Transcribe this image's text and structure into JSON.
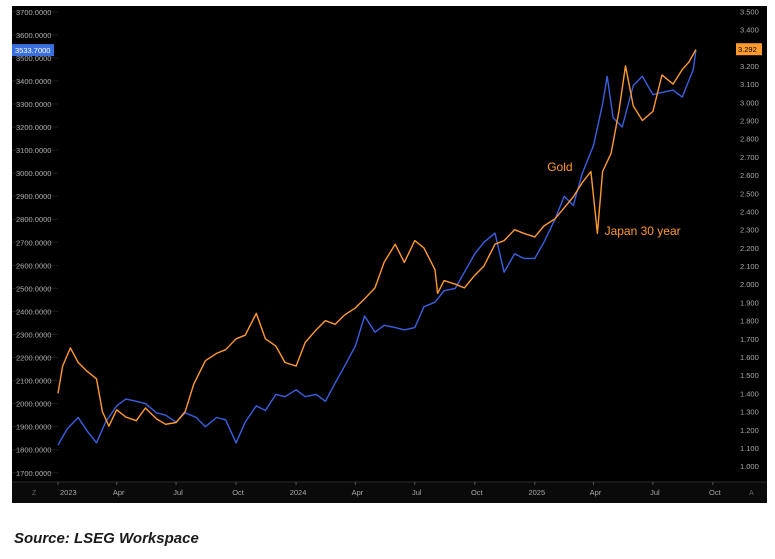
{
  "source": "Source: LSEG Workspace",
  "chart_data": {
    "type": "line",
    "x_labels": [
      "2023",
      "Apr",
      "Jul",
      "Oct",
      "2024",
      "Apr",
      "Jul",
      "Oct",
      "2025",
      "Apr",
      "Jul",
      "Oct"
    ],
    "x_range": [
      "2023-01-01",
      "2025-10-15"
    ],
    "left_axis": {
      "ticks": [
        "3700.0000",
        "3600.0000",
        "3500.0000",
        "3400.0000",
        "3300.0000",
        "3200.0000",
        "3100.0000",
        "3000.0000",
        "2900.0000",
        "2800.0000",
        "2700.0000",
        "2600.0000",
        "2500.0000",
        "2400.0000",
        "2300.0000",
        "2200.0000",
        "2100.0000",
        "2000.0000",
        "1900.0000",
        "1800.0000",
        "1700.0000"
      ],
      "range": [
        1660,
        3712
      ],
      "last_value": "3533.7000"
    },
    "right_axis": {
      "ticks": [
        "3.500",
        "3.400",
        "3.300",
        "3.200",
        "3.100",
        "3.000",
        "2.900",
        "2.800",
        "2.700",
        "2.600",
        "2.500",
        "2.400",
        "2.300",
        "2.200",
        "2.100",
        "2.000",
        "1.900",
        "1.800",
        "1.700",
        "1.600",
        "1.500",
        "1.400",
        "1.300",
        "1.200",
        "1.100",
        "1.000"
      ],
      "range": [
        0.913,
        3.513
      ],
      "last_value": "3.292"
    },
    "corner_left": "Z",
    "corner_right": "A",
    "series": [
      {
        "name": "Gold",
        "axis": "left",
        "color": "#3a5fe0",
        "points": [
          [
            "2023-01-01",
            1820
          ],
          [
            "2023-01-15",
            1890
          ],
          [
            "2023-02-01",
            1940
          ],
          [
            "2023-02-15",
            1880
          ],
          [
            "2023-03-01",
            1830
          ],
          [
            "2023-03-15",
            1920
          ],
          [
            "2023-04-01",
            1990
          ],
          [
            "2023-04-15",
            2020
          ],
          [
            "2023-05-01",
            2010
          ],
          [
            "2023-05-15",
            2000
          ],
          [
            "2023-06-01",
            1960
          ],
          [
            "2023-06-15",
            1950
          ],
          [
            "2023-07-01",
            1920
          ],
          [
            "2023-07-15",
            1960
          ],
          [
            "2023-08-01",
            1940
          ],
          [
            "2023-08-15",
            1900
          ],
          [
            "2023-09-01",
            1940
          ],
          [
            "2023-09-15",
            1930
          ],
          [
            "2023-10-01",
            1830
          ],
          [
            "2023-10-15",
            1920
          ],
          [
            "2023-11-01",
            1990
          ],
          [
            "2023-11-15",
            1970
          ],
          [
            "2023-12-01",
            2040
          ],
          [
            "2023-12-15",
            2030
          ],
          [
            "2024-01-01",
            2060
          ],
          [
            "2024-01-15",
            2030
          ],
          [
            "2024-02-01",
            2040
          ],
          [
            "2024-02-15",
            2010
          ],
          [
            "2024-03-01",
            2090
          ],
          [
            "2024-03-15",
            2160
          ],
          [
            "2024-04-01",
            2250
          ],
          [
            "2024-04-15",
            2380
          ],
          [
            "2024-05-01",
            2310
          ],
          [
            "2024-05-15",
            2340
          ],
          [
            "2024-06-01",
            2330
          ],
          [
            "2024-06-15",
            2320
          ],
          [
            "2024-07-01",
            2330
          ],
          [
            "2024-07-15",
            2420
          ],
          [
            "2024-08-01",
            2440
          ],
          [
            "2024-08-15",
            2490
          ],
          [
            "2024-09-01",
            2500
          ],
          [
            "2024-09-15",
            2570
          ],
          [
            "2024-10-01",
            2650
          ],
          [
            "2024-10-15",
            2700
          ],
          [
            "2024-11-01",
            2740
          ],
          [
            "2024-11-15",
            2570
          ],
          [
            "2024-12-01",
            2650
          ],
          [
            "2024-12-15",
            2630
          ],
          [
            "2025-01-01",
            2630
          ],
          [
            "2025-01-15",
            2700
          ],
          [
            "2025-02-01",
            2800
          ],
          [
            "2025-02-15",
            2900
          ],
          [
            "2025-03-01",
            2860
          ],
          [
            "2025-03-15",
            3000
          ],
          [
            "2025-04-01",
            3120
          ],
          [
            "2025-04-15",
            3300
          ],
          [
            "2025-04-22",
            3420
          ],
          [
            "2025-05-01",
            3240
          ],
          [
            "2025-05-15",
            3200
          ],
          [
            "2025-06-01",
            3380
          ],
          [
            "2025-06-15",
            3420
          ],
          [
            "2025-07-01",
            3340
          ],
          [
            "2025-07-15",
            3350
          ],
          [
            "2025-08-01",
            3360
          ],
          [
            "2025-08-15",
            3330
          ],
          [
            "2025-09-01",
            3450
          ],
          [
            "2025-09-05",
            3533
          ]
        ]
      },
      {
        "name": "Japan 30 year",
        "axis": "right",
        "color": "#ff9a2e",
        "points": [
          [
            "2023-01-01",
            1.4
          ],
          [
            "2023-01-08",
            1.55
          ],
          [
            "2023-01-20",
            1.65
          ],
          [
            "2023-02-01",
            1.57
          ],
          [
            "2023-02-15",
            1.52
          ],
          [
            "2023-03-01",
            1.48
          ],
          [
            "2023-03-10",
            1.3
          ],
          [
            "2023-03-20",
            1.22
          ],
          [
            "2023-04-01",
            1.31
          ],
          [
            "2023-04-15",
            1.27
          ],
          [
            "2023-05-01",
            1.25
          ],
          [
            "2023-05-15",
            1.32
          ],
          [
            "2023-06-01",
            1.26
          ],
          [
            "2023-06-15",
            1.23
          ],
          [
            "2023-07-01",
            1.24
          ],
          [
            "2023-07-15",
            1.3
          ],
          [
            "2023-07-28",
            1.45
          ],
          [
            "2023-08-15",
            1.58
          ],
          [
            "2023-09-01",
            1.62
          ],
          [
            "2023-09-15",
            1.64
          ],
          [
            "2023-10-01",
            1.7
          ],
          [
            "2023-10-15",
            1.72
          ],
          [
            "2023-11-01",
            1.84
          ],
          [
            "2023-11-15",
            1.7
          ],
          [
            "2023-12-01",
            1.66
          ],
          [
            "2023-12-15",
            1.57
          ],
          [
            "2024-01-01",
            1.55
          ],
          [
            "2024-01-15",
            1.68
          ],
          [
            "2024-02-01",
            1.75
          ],
          [
            "2024-02-15",
            1.8
          ],
          [
            "2024-03-01",
            1.78
          ],
          [
            "2024-03-15",
            1.83
          ],
          [
            "2024-04-01",
            1.87
          ],
          [
            "2024-04-15",
            1.92
          ],
          [
            "2024-05-01",
            1.98
          ],
          [
            "2024-05-15",
            2.12
          ],
          [
            "2024-06-01",
            2.22
          ],
          [
            "2024-06-15",
            2.12
          ],
          [
            "2024-07-01",
            2.24
          ],
          [
            "2024-07-15",
            2.2
          ],
          [
            "2024-08-01",
            2.08
          ],
          [
            "2024-08-05",
            1.95
          ],
          [
            "2024-08-15",
            2.02
          ],
          [
            "2024-09-01",
            2.0
          ],
          [
            "2024-09-15",
            1.98
          ],
          [
            "2024-10-01",
            2.05
          ],
          [
            "2024-10-15",
            2.1
          ],
          [
            "2024-11-01",
            2.22
          ],
          [
            "2024-11-15",
            2.24
          ],
          [
            "2024-12-01",
            2.3
          ],
          [
            "2024-12-15",
            2.28
          ],
          [
            "2025-01-01",
            2.26
          ],
          [
            "2025-01-15",
            2.32
          ],
          [
            "2025-02-01",
            2.36
          ],
          [
            "2025-02-15",
            2.42
          ],
          [
            "2025-03-01",
            2.48
          ],
          [
            "2025-03-15",
            2.56
          ],
          [
            "2025-03-28",
            2.62
          ],
          [
            "2025-04-07",
            2.28
          ],
          [
            "2025-04-15",
            2.62
          ],
          [
            "2025-04-28",
            2.72
          ],
          [
            "2025-05-10",
            2.95
          ],
          [
            "2025-05-20",
            3.2
          ],
          [
            "2025-06-01",
            2.98
          ],
          [
            "2025-06-15",
            2.9
          ],
          [
            "2025-07-01",
            2.95
          ],
          [
            "2025-07-15",
            3.15
          ],
          [
            "2025-08-01",
            3.1
          ],
          [
            "2025-08-15",
            3.18
          ],
          [
            "2025-08-25",
            3.22
          ],
          [
            "2025-09-05",
            3.29
          ]
        ]
      }
    ],
    "annotations": [
      {
        "text": "Gold",
        "date": "2025-01-20",
        "value": 3010,
        "axis": "left",
        "color": "#ff9a2e"
      },
      {
        "text": "Japan 30 year",
        "date": "2025-04-18",
        "value": 2.27,
        "axis": "right",
        "color": "#ff9a2e"
      }
    ]
  }
}
